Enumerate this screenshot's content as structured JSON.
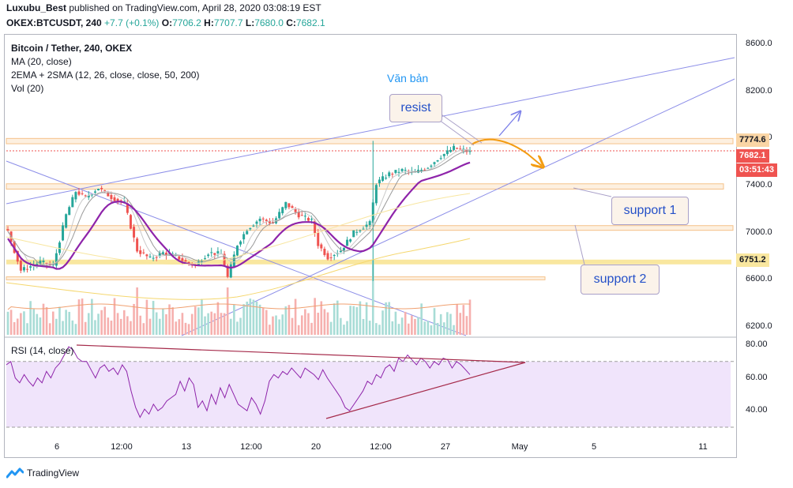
{
  "header": {
    "author": "Luxubu_Best",
    "published_text": "published on TradingView.com, April 28, 2020 03:08:19 EST",
    "symbol": "OKEX:BTCUSDT, 240",
    "change": "+7.7 (+0.1%)",
    "o_label": "O:",
    "o_value": "7706.2",
    "h_label": "H:",
    "h_value": "7707.7",
    "l_label": "L:",
    "l_value": "7680.0",
    "c_label": "C:",
    "c_value": "7682.1"
  },
  "legend": {
    "title": "Bitcoin / Tether, 240, OKEX",
    "ma": "MA (20, close)",
    "ema": "2EMA + 2SMA (12, 26, close, close, 50, 200)",
    "vol": "Vol (20)",
    "rsi": "RSI (14, close)"
  },
  "annotations": {
    "text_note": "Văn bản",
    "resist": "resist",
    "support1": "support 1",
    "support2": "support 2"
  },
  "price_tags": {
    "resist_level": "7774.6",
    "last_price": "7682.1",
    "countdown": "03:51:43",
    "support_level": "6751.2"
  },
  "colors": {
    "up": "#26a69a",
    "down": "#ef5350",
    "ma_purple": "#8e24aa",
    "trend_blue": "#8c8ee8",
    "rsi_line": "#a52a4a",
    "rsi_band": "#f0e4fb",
    "zone_orange": "#f5c28a",
    "support_yellow": "#f9e79f",
    "arrow_orange": "#f39c12"
  },
  "footer": {
    "brand": "TradingView"
  },
  "chart_data": [
    {
      "type": "candlestick",
      "title": "Bitcoin / Tether, 240, OKEX",
      "ylim": [
        6100,
        8700
      ],
      "y_ticks": [
        "8600.0",
        "8200.0",
        "7800.0",
        "7400.0",
        "7000.0",
        "6600.0",
        "6200.0"
      ],
      "y_tick_values": [
        8600,
        8200,
        7800,
        7400,
        7000,
        6600,
        6200
      ],
      "x_ticks": [
        "6",
        "12:00",
        "13",
        "12:00",
        "20",
        "12:00",
        "27",
        "May",
        "5",
        "11"
      ],
      "close_path": [
        {
          "t": 0,
          "p": 7010
        },
        {
          "t": 4,
          "p": 6680
        },
        {
          "t": 10,
          "p": 6750
        },
        {
          "t": 14,
          "p": 6720
        },
        {
          "t": 18,
          "p": 7150
        },
        {
          "t": 21,
          "p": 7350
        },
        {
          "t": 24,
          "p": 7300
        },
        {
          "t": 28,
          "p": 7380
        },
        {
          "t": 32,
          "p": 7300
        },
        {
          "t": 36,
          "p": 7250
        },
        {
          "t": 40,
          "p": 6850
        },
        {
          "t": 44,
          "p": 6780
        },
        {
          "t": 48,
          "p": 6830
        },
        {
          "t": 52,
          "p": 6800
        },
        {
          "t": 55,
          "p": 6750
        },
        {
          "t": 58,
          "p": 6720
        },
        {
          "t": 62,
          "p": 6830
        },
        {
          "t": 66,
          "p": 6820
        },
        {
          "t": 68,
          "p": 6620
        },
        {
          "t": 71,
          "p": 6900
        },
        {
          "t": 74,
          "p": 7030
        },
        {
          "t": 78,
          "p": 7120
        },
        {
          "t": 82,
          "p": 7080
        },
        {
          "t": 86,
          "p": 7250
        },
        {
          "t": 90,
          "p": 7150
        },
        {
          "t": 94,
          "p": 7100
        },
        {
          "t": 96,
          "p": 6900
        },
        {
          "t": 99,
          "p": 6790
        },
        {
          "t": 103,
          "p": 6850
        },
        {
          "t": 107,
          "p": 7000
        },
        {
          "t": 110,
          "p": 7050
        },
        {
          "t": 112,
          "p": 7080
        },
        {
          "t": 114,
          "p": 7420
        },
        {
          "t": 118,
          "p": 7500
        },
        {
          "t": 122,
          "p": 7530
        },
        {
          "t": 126,
          "p": 7510
        },
        {
          "t": 130,
          "p": 7560
        },
        {
          "t": 134,
          "p": 7650
        },
        {
          "t": 138,
          "p": 7720
        },
        {
          "t": 141,
          "p": 7700
        },
        {
          "t": 143,
          "p": 7682
        }
      ],
      "resist_zone": [
        7755,
        7800
      ],
      "support_1_zone": [
        7370,
        7415
      ],
      "support_2_zone": [
        7020,
        7060
      ],
      "key_support": 6751.2,
      "lower_zone": [
        6600,
        6625
      ]
    },
    {
      "type": "line",
      "title": "RSI (14, close)",
      "ylim": [
        28,
        82
      ],
      "y_ticks": [
        "80.00",
        "60.00",
        "40.00"
      ],
      "y_tick_values": [
        80,
        60,
        40
      ],
      "band": [
        30,
        70
      ],
      "values": [
        68,
        70,
        60,
        57,
        62,
        58,
        55,
        60,
        57,
        64,
        60,
        66,
        69,
        74,
        79,
        77,
        72,
        70,
        70,
        65,
        60,
        66,
        68,
        64,
        66,
        62,
        68,
        64,
        52,
        42,
        36,
        41,
        38,
        44,
        40,
        42,
        46,
        48,
        50,
        58,
        52,
        60,
        56,
        42,
        46,
        40,
        50,
        44,
        54,
        48,
        56,
        50,
        44,
        42,
        40,
        48,
        44,
        38,
        46,
        58,
        62,
        60,
        64,
        62,
        66,
        63,
        60,
        66,
        64,
        62,
        59,
        65,
        60,
        56,
        52,
        48,
        42,
        40,
        44,
        48,
        52,
        58,
        56,
        62,
        60,
        66,
        68,
        64,
        72,
        70,
        74,
        71,
        68,
        72,
        70,
        66,
        70,
        68,
        72,
        71,
        66,
        70,
        68,
        65,
        62
      ]
    }
  ]
}
